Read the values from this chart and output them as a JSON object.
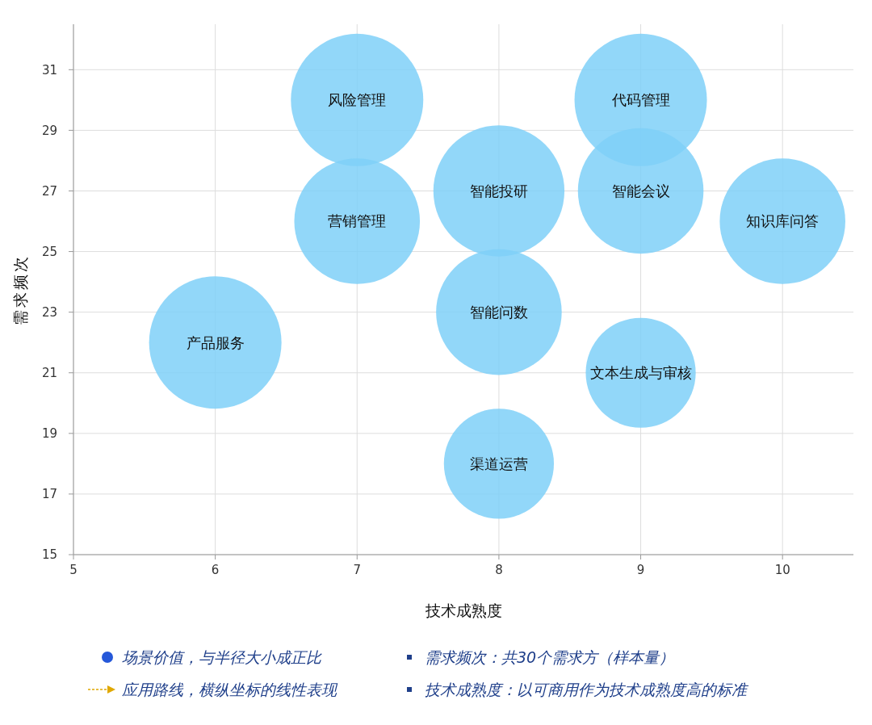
{
  "chart_data": {
    "type": "bubble",
    "xlabel": "技术成熟度",
    "ylabel": "需求频次",
    "series": [
      {
        "name": "风险管理",
        "color": "#7fd0f8",
        "x": [
          7
        ],
        "values": [
          30
        ],
        "sizes": [
          1
        ]
      },
      {
        "name": "代码管理",
        "color": "#7fd0f8",
        "x": [
          9
        ],
        "values": [
          30
        ],
        "sizes": [
          1
        ]
      },
      {
        "name": "智能投研",
        "color": "#7fd0f8",
        "x": [
          8
        ],
        "values": [
          27
        ],
        "sizes": [
          0.98
        ]
      },
      {
        "name": "智能会议",
        "color": "#7fd0f8",
        "x": [
          9
        ],
        "values": [
          27
        ],
        "sizes": [
          0.9
        ]
      },
      {
        "name": "知识库问答",
        "color": "#7fd0f8",
        "x": [
          10
        ],
        "values": [
          26
        ],
        "sizes": [
          0.9
        ]
      },
      {
        "name": "营销管理",
        "color": "#7fd0f8",
        "x": [
          7
        ],
        "values": [
          26
        ],
        "sizes": [
          0.9
        ]
      },
      {
        "name": "产品服务",
        "color": "#7fd0f8",
        "x": [
          6
        ],
        "values": [
          22
        ],
        "sizes": [
          1
        ]
      },
      {
        "name": "智能问数",
        "color": "#7fd0f8",
        "x": [
          8
        ],
        "values": [
          23
        ],
        "sizes": [
          0.9
        ]
      },
      {
        "name": "文本生成与审核",
        "color": "#7fd0f8",
        "x": [
          9
        ],
        "values": [
          21
        ],
        "sizes": [
          0.69
        ]
      },
      {
        "name": "渠道运营",
        "color": "#7fd0f8",
        "x": [
          8
        ],
        "values": [
          18
        ],
        "sizes": [
          0.69
        ]
      }
    ],
    "xlim": [
      5,
      10.5
    ],
    "xticks": [
      5,
      6,
      7,
      8,
      9,
      10
    ],
    "ylim": [
      15,
      32.5
    ],
    "yticks": [
      15,
      17,
      19,
      21,
      23,
      25,
      27,
      29,
      31
    ],
    "grid": true,
    "annotations": [
      "场景价值，与半径大小成正比",
      "需求频次：共30个需求方（样本量）",
      "应用路线，横纵坐标的线性表现",
      "技术成熟度：以可商用作为技术成熟度高的标准"
    ]
  }
}
